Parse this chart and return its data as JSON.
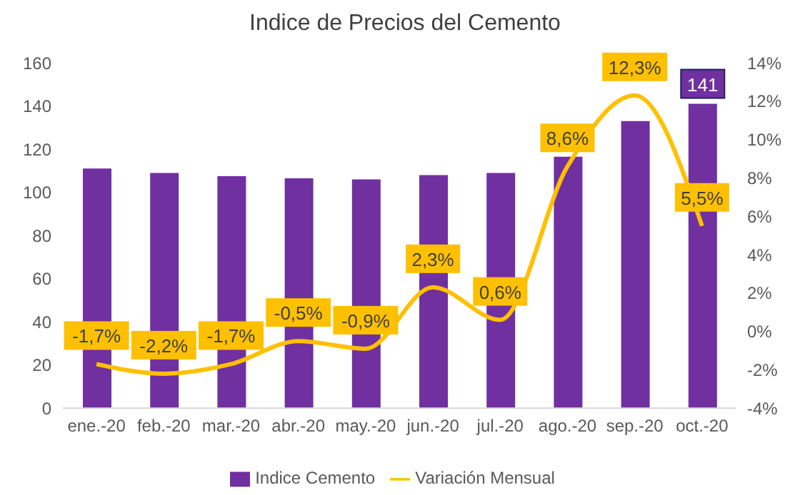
{
  "chart_data": {
    "type": "bar",
    "title": "Indice de Precios del Cemento",
    "categories": [
      "ene.-20",
      "feb.-20",
      "mar.-20",
      "abr.-20",
      "may.-20",
      "jun.-20",
      "jul.-20",
      "ago.-20",
      "sep.-20",
      "oct.-20"
    ],
    "series": [
      {
        "name": "Indice Cemento",
        "color": "#7030a0",
        "values": [
          111,
          109,
          107.5,
          106.5,
          106,
          108,
          109,
          116.5,
          133,
          141
        ],
        "value_labels": [
          null,
          null,
          null,
          null,
          null,
          null,
          null,
          null,
          null,
          "141"
        ]
      },
      {
        "name": "Variación Mensual",
        "type": "line",
        "axis": "y2",
        "color": "#ffc000",
        "values": [
          -1.7,
          -2.2,
          -1.7,
          -0.5,
          -0.9,
          2.3,
          0.6,
          8.6,
          12.3,
          5.5
        ],
        "value_labels": [
          "-1,7%",
          "-2,2%",
          "-1,7%",
          "-0,5%",
          "-0,9%",
          "2,3%",
          "0,6%",
          "8,6%",
          "12,3%",
          "5,5%"
        ]
      }
    ],
    "ylim": [
      0,
      160
    ],
    "yticks": [
      0,
      20,
      40,
      60,
      80,
      100,
      120,
      140,
      160
    ],
    "y2lim": [
      -4,
      14
    ],
    "y2ticks": [
      {
        "value": -4,
        "label": "-4%"
      },
      {
        "value": -2,
        "label": "-2%"
      },
      {
        "value": 0,
        "label": "0%"
      },
      {
        "value": 2,
        "label": "2%"
      },
      {
        "value": 4,
        "label": "4%"
      },
      {
        "value": 6,
        "label": "6%"
      },
      {
        "value": 8,
        "label": "8%"
      },
      {
        "value": 10,
        "label": "10%"
      },
      {
        "value": 12,
        "label": "12%"
      },
      {
        "value": 14,
        "label": "14%"
      }
    ],
    "grid": false,
    "legend": "bottom",
    "marker": "none"
  }
}
